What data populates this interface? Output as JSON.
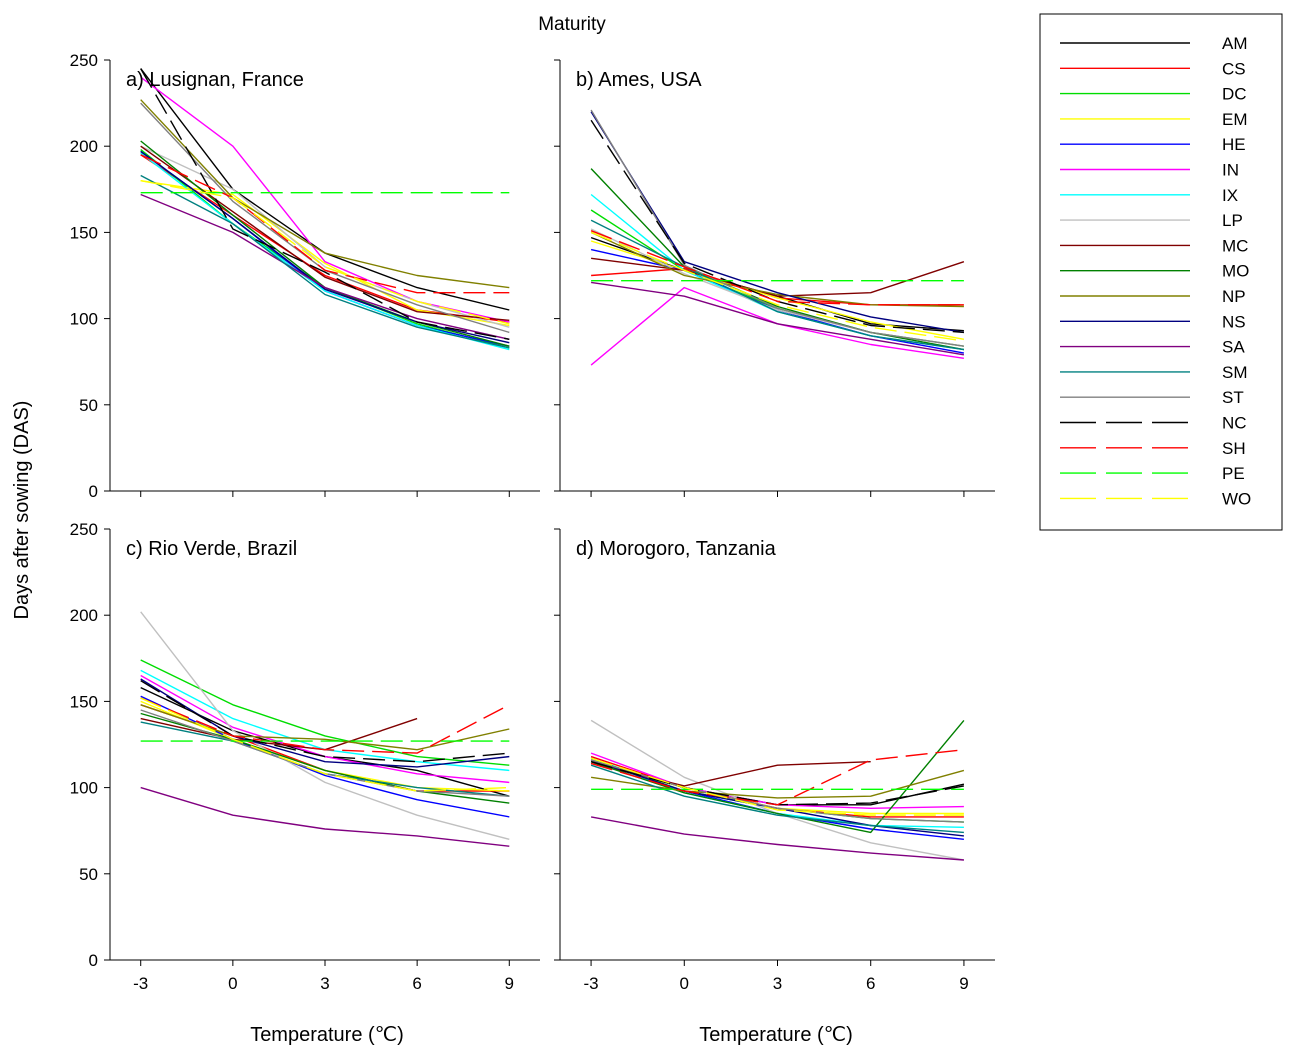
{
  "figure": {
    "title": "Maturity",
    "ylabel": "Days after sowing (DAS)",
    "xlabel": "Temperature (℃)",
    "x_ticks": [
      "-3",
      "0",
      "3",
      "6",
      "9"
    ],
    "y_ticks": [
      "0",
      "50",
      "100",
      "150",
      "200",
      "250"
    ]
  },
  "legend": {
    "placement": "right",
    "entries": [
      {
        "name": "AM",
        "color": "#000000",
        "dashed": false
      },
      {
        "name": "CS",
        "color": "#ff0000",
        "dashed": false
      },
      {
        "name": "DC",
        "color": "#00dd00",
        "dashed": false
      },
      {
        "name": "EM",
        "color": "#ffff00",
        "dashed": false
      },
      {
        "name": "HE",
        "color": "#0000ff",
        "dashed": false
      },
      {
        "name": "IN",
        "color": "#ff00ff",
        "dashed": false
      },
      {
        "name": "IX",
        "color": "#00ffff",
        "dashed": false
      },
      {
        "name": "LP",
        "color": "#c0c0c0",
        "dashed": false
      },
      {
        "name": "MC",
        "color": "#800000",
        "dashed": false
      },
      {
        "name": "MO",
        "color": "#008000",
        "dashed": false
      },
      {
        "name": "NP",
        "color": "#808000",
        "dashed": false
      },
      {
        "name": "NS",
        "color": "#000080",
        "dashed": false
      },
      {
        "name": "SA",
        "color": "#800080",
        "dashed": false
      },
      {
        "name": "SM",
        "color": "#008080",
        "dashed": false
      },
      {
        "name": "ST",
        "color": "#808080",
        "dashed": false
      },
      {
        "name": "NC",
        "color": "#000000",
        "dashed": true
      },
      {
        "name": "SH",
        "color": "#ff0000",
        "dashed": true
      },
      {
        "name": "PE",
        "color": "#00ff00",
        "dashed": true
      },
      {
        "name": "WO",
        "color": "#ffff00",
        "dashed": true
      }
    ]
  },
  "chart_data": [
    {
      "type": "line",
      "panel_label": "a) Lusignan, France",
      "x": [
        -3,
        0,
        3,
        6,
        9
      ],
      "xlim": [
        -4,
        10
      ],
      "ylim": [
        0,
        250
      ],
      "series": [
        {
          "name": "AM",
          "values": [
            245,
            175,
            138,
            118,
            105
          ]
        },
        {
          "name": "CS",
          "values": [
            195,
            160,
            125,
            105,
            98
          ]
        },
        {
          "name": "DC",
          "values": [
            198,
            155,
            118,
            97,
            83
          ]
        },
        {
          "name": "EM",
          "values": [
            180,
            172,
            132,
            105,
            96
          ]
        },
        {
          "name": "HE",
          "values": [
            197,
            158,
            116,
            96,
            84
          ]
        },
        {
          "name": "IN",
          "values": [
            240,
            200,
            133,
            110,
            98
          ]
        },
        {
          "name": "IX",
          "values": [
            196,
            155,
            116,
            96,
            82
          ]
        },
        {
          "name": "LP",
          "values": [
            200,
            175,
            130,
            110,
            95
          ]
        },
        {
          "name": "MC",
          "values": [
            200,
            162,
            124,
            104,
            99
          ]
        },
        {
          "name": "MO",
          "values": [
            203,
            160,
            118,
            98,
            84
          ]
        },
        {
          "name": "NP",
          "values": [
            227,
            170,
            138,
            125,
            118
          ]
        },
        {
          "name": "NS",
          "values": [
            197,
            158,
            117,
            98,
            86
          ]
        },
        {
          "name": "SA",
          "values": [
            172,
            150,
            118,
            100,
            88
          ]
        },
        {
          "name": "SM",
          "values": [
            183,
            155,
            114,
            95,
            83
          ]
        },
        {
          "name": "ST",
          "values": [
            225,
            168,
            128,
            108,
            92
          ]
        },
        {
          "name": "NC",
          "values": [
            245,
            152,
            127,
            98,
            88
          ]
        },
        {
          "name": "SH",
          "values": [
            195,
            170,
            128,
            115,
            115
          ]
        },
        {
          "name": "PE",
          "values": [
            173,
            173,
            173,
            173,
            173
          ]
        },
        {
          "name": "WO",
          "values": [
            180,
            170,
            130,
            110,
            97
          ]
        }
      ]
    },
    {
      "type": "line",
      "panel_label": "b) Ames, USA",
      "x": [
        -3,
        0,
        3,
        6,
        9
      ],
      "xlim": [
        -4,
        10
      ],
      "ylim": [
        0,
        250
      ],
      "series": [
        {
          "name": "AM",
          "values": [
            147,
            128,
            113,
            97,
            93
          ]
        },
        {
          "name": "CS",
          "values": [
            125,
            129,
            112,
            108,
            108
          ]
        },
        {
          "name": "DC",
          "values": [
            163,
            128,
            106,
            92,
            84
          ]
        },
        {
          "name": "EM",
          "values": [
            145,
            128,
            112,
            98,
            88
          ]
        },
        {
          "name": "HE",
          "values": [
            140,
            128,
            105,
            90,
            80
          ]
        },
        {
          "name": "IN",
          "values": [
            73,
            118,
            97,
            85,
            77
          ]
        },
        {
          "name": "IX",
          "values": [
            172,
            128,
            104,
            90,
            82
          ]
        },
        {
          "name": "LP",
          "values": [
            152,
            126,
            105,
            92,
            84
          ]
        },
        {
          "name": "MC",
          "values": [
            135,
            128,
            113,
            115,
            133
          ]
        },
        {
          "name": "MO",
          "values": [
            187,
            130,
            107,
            92,
            82
          ]
        },
        {
          "name": "NP",
          "values": [
            150,
            125,
            114,
            108,
            107
          ]
        },
        {
          "name": "NS",
          "values": [
            220,
            133,
            115,
            101,
            92
          ]
        },
        {
          "name": "SA",
          "values": [
            121,
            113,
            97,
            88,
            79
          ]
        },
        {
          "name": "SM",
          "values": [
            157,
            130,
            104,
            90,
            82
          ]
        },
        {
          "name": "ST",
          "values": [
            221,
            131,
            106,
            92,
            84
          ]
        },
        {
          "name": "NC",
          "values": [
            215,
            132,
            110,
            96,
            92
          ]
        },
        {
          "name": "SH",
          "values": [
            151,
            130,
            110,
            108,
            108
          ]
        },
        {
          "name": "PE",
          "values": [
            122,
            122,
            122,
            122,
            122
          ]
        },
        {
          "name": "WO",
          "values": [
            150,
            128,
            108,
            95,
            87
          ]
        }
      ]
    },
    {
      "type": "line",
      "panel_label": "c) Rio Verde, Brazil",
      "x": [
        -3,
        0,
        3,
        6,
        9
      ],
      "xlim": [
        -4,
        10
      ],
      "ylim": [
        0,
        250
      ],
      "series": [
        {
          "name": "AM",
          "values": [
            158,
            133,
            118,
            110,
            95
          ]
        },
        {
          "name": "CS",
          "values": [
            148,
            130,
            110,
            98,
            98
          ]
        },
        {
          "name": "DC",
          "values": [
            174,
            148,
            130,
            118,
            113
          ]
        },
        {
          "name": "EM",
          "values": [
            150,
            128,
            110,
            100,
            98
          ]
        },
        {
          "name": "HE",
          "values": [
            153,
            128,
            107,
            93,
            83
          ]
        },
        {
          "name": "IN",
          "values": [
            165,
            135,
            118,
            108,
            103
          ]
        },
        {
          "name": "IX",
          "values": [
            168,
            140,
            122,
            115,
            110
          ]
        },
        {
          "name": "LP",
          "values": [
            202,
            133,
            103,
            84,
            70
          ]
        },
        {
          "name": "MC",
          "values": [
            140,
            128,
            122,
            140,
            null
          ]
        },
        {
          "name": "MO",
          "values": [
            143,
            128,
            110,
            98,
            91
          ]
        },
        {
          "name": "NP",
          "values": [
            148,
            130,
            128,
            122,
            134
          ]
        },
        {
          "name": "NS",
          "values": [
            163,
            130,
            115,
            112,
            118
          ]
        },
        {
          "name": "SA",
          "values": [
            100,
            84,
            76,
            72,
            66
          ]
        },
        {
          "name": "SM",
          "values": [
            138,
            127,
            108,
            100,
            95
          ]
        },
        {
          "name": "ST",
          "values": [
            145,
            127,
            108,
            98,
            95
          ]
        },
        {
          "name": "NC",
          "values": [
            162,
            130,
            118,
            115,
            120
          ]
        },
        {
          "name": "SH",
          "values": [
            152,
            130,
            122,
            120,
            148
          ]
        },
        {
          "name": "PE",
          "values": [
            127,
            127,
            127,
            127,
            127
          ]
        },
        {
          "name": "WO",
          "values": [
            152,
            128,
            108,
            98,
            100
          ]
        }
      ]
    },
    {
      "type": "line",
      "panel_label": "d) Morogoro, Tanzania",
      "x": [
        -3,
        0,
        3,
        6,
        9
      ],
      "xlim": [
        -4,
        10
      ],
      "ylim": [
        0,
        250
      ],
      "series": [
        {
          "name": "AM",
          "values": [
            115,
            100,
            90,
            90,
            102
          ]
        },
        {
          "name": "CS",
          "values": [
            118,
            100,
            88,
            83,
            83
          ]
        },
        {
          "name": "DC",
          "values": [
            117,
            98,
            88,
            82,
            80
          ]
        },
        {
          "name": "EM",
          "values": [
            115,
            100,
            88,
            85,
            85
          ]
        },
        {
          "name": "HE",
          "values": [
            116,
            98,
            85,
            76,
            70
          ]
        },
        {
          "name": "IN",
          "values": [
            120,
            100,
            90,
            88,
            89
          ]
        },
        {
          "name": "IX",
          "values": [
            117,
            97,
            85,
            78,
            77
          ]
        },
        {
          "name": "LP",
          "values": [
            139,
            106,
            85,
            68,
            58
          ]
        },
        {
          "name": "MC",
          "values": [
            114,
            101,
            113,
            115,
            null
          ]
        },
        {
          "name": "MO",
          "values": [
            115,
            97,
            85,
            74,
            139
          ]
        },
        {
          "name": "NP",
          "values": [
            106,
            98,
            94,
            95,
            110
          ]
        },
        {
          "name": "NS",
          "values": [
            116,
            98,
            88,
            78,
            72
          ]
        },
        {
          "name": "SA",
          "values": [
            83,
            73,
            67,
            62,
            58
          ]
        },
        {
          "name": "SM",
          "values": [
            113,
            95,
            84,
            78,
            74
          ]
        },
        {
          "name": "ST",
          "values": [
            116,
            100,
            88,
            82,
            80
          ]
        },
        {
          "name": "NC",
          "values": [
            115,
            100,
            90,
            91,
            101
          ]
        },
        {
          "name": "SH",
          "values": [
            114,
            98,
            90,
            116,
            122
          ]
        },
        {
          "name": "PE",
          "values": [
            99,
            99,
            99,
            99,
            99
          ]
        },
        {
          "name": "WO",
          "values": [
            117,
            100,
            87,
            84,
            84
          ]
        }
      ]
    }
  ]
}
